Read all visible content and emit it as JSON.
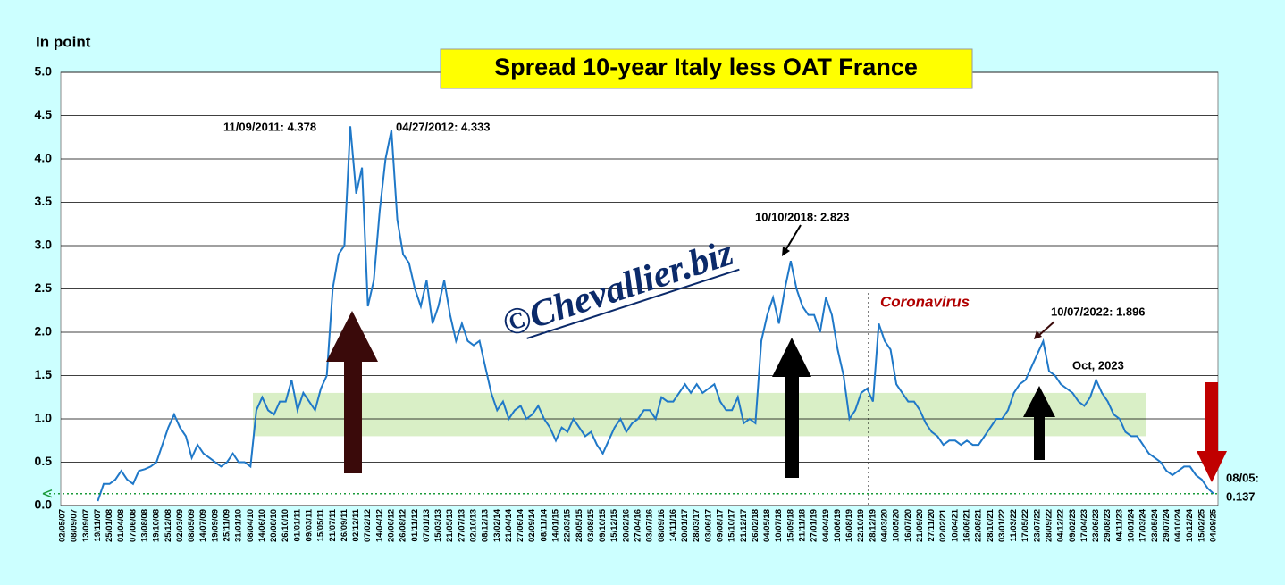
{
  "chart_data": {
    "type": "line",
    "title": "Spread 10-year Italy less OAT France",
    "y_label": "In point",
    "watermark": "©Chevallier.biz",
    "categories": [
      "02/05/07",
      null,
      "08/09/07",
      null,
      "13/09/07",
      null,
      "19/11/07",
      null,
      "25/01/08",
      null,
      "01/04/08",
      null,
      "07/06/08",
      null,
      "13/08/08",
      null,
      "19/10/08",
      null,
      "25/12/08",
      null,
      "02/03/09",
      null,
      "08/05/09",
      null,
      "14/07/09",
      null,
      "19/09/09",
      null,
      "25/11/09",
      null,
      "31/01/10",
      null,
      "08/04/10",
      null,
      "14/06/10",
      null,
      "20/08/10",
      null,
      "26/10/10",
      null,
      "01/01/11",
      null,
      "09/03/11",
      null,
      "15/05/11",
      null,
      "21/07/11",
      null,
      "26/09/11",
      null,
      "02/12/11",
      null,
      "07/02/12",
      null,
      "14/04/12",
      null,
      "20/06/12",
      null,
      "26/08/12",
      null,
      "01/11/12",
      null,
      "07/01/13",
      null,
      "15/03/13",
      null,
      "21/05/13",
      null,
      "27/07/13",
      null,
      "02/10/13",
      null,
      "08/12/13",
      null,
      "13/02/14",
      null,
      "21/04/14",
      null,
      "27/06/14",
      null,
      "02/09/14",
      null,
      "08/11/14",
      null,
      "14/01/15",
      null,
      "22/03/15",
      null,
      "28/05/15",
      null,
      "03/08/15",
      null,
      "09/10/15",
      null,
      "15/12/15",
      null,
      "20/02/16",
      null,
      "27/04/16",
      null,
      "03/07/16",
      null,
      "08/09/16",
      null,
      "14/11/16",
      null,
      "20/01/17",
      null,
      "28/03/17",
      null,
      "03/06/17",
      null,
      "09/08/17",
      null,
      "15/10/17",
      null,
      "21/12/17",
      null,
      "26/02/18",
      null,
      "04/05/18",
      null,
      "10/07/18",
      null,
      "15/09/18",
      null,
      "21/11/18",
      null,
      "27/01/19",
      null,
      "04/04/19",
      null,
      "10/06/19",
      null,
      "16/08/19",
      null,
      "22/10/19",
      null,
      "28/12/19",
      null,
      "04/03/20",
      null,
      "10/05/20",
      null,
      "16/07/20",
      null,
      "21/09/20",
      null,
      "27/11/20",
      null,
      "02/02/21",
      null,
      "10/04/21",
      null,
      "16/06/21",
      null,
      "22/08/21",
      null,
      "28/10/21",
      null,
      "03/01/22",
      null,
      "11/03/22",
      null,
      "17/05/22",
      null,
      "23/07/22",
      null,
      "28/09/22",
      null,
      "04/12/22",
      null,
      "09/02/23",
      null,
      "17/04/23",
      null,
      "23/06/23",
      null,
      "29/08/23",
      null,
      "04/11/23",
      null,
      "10/01/24",
      null,
      "17/03/24",
      null,
      "23/05/24",
      null,
      "29/07/24",
      null,
      "04/10/24",
      null,
      "10/12/24",
      null,
      "15/02/25",
      null,
      "04/09/25"
    ],
    "series": [
      {
        "name": "Spread",
        "color": "#1f78c8",
        "values": [
          null,
          null,
          null,
          null,
          null,
          null,
          0.05,
          0.25,
          0.25,
          0.3,
          0.4,
          0.3,
          0.25,
          0.4,
          0.42,
          0.45,
          0.5,
          0.7,
          0.9,
          1.05,
          0.9,
          0.8,
          0.55,
          0.7,
          0.6,
          0.55,
          0.5,
          0.45,
          0.5,
          0.6,
          0.5,
          0.5,
          0.45,
          1.1,
          1.25,
          1.1,
          1.05,
          1.2,
          1.2,
          1.45,
          1.1,
          1.3,
          1.2,
          1.1,
          1.35,
          1.5,
          2.5,
          2.9,
          3.0,
          4.378,
          3.6,
          3.9,
          2.3,
          2.6,
          3.4,
          4.0,
          4.333,
          3.3,
          2.9,
          2.8,
          2.5,
          2.3,
          2.6,
          2.1,
          2.3,
          2.6,
          2.2,
          1.9,
          2.1,
          1.9,
          1.85,
          1.9,
          1.6,
          1.3,
          1.1,
          1.2,
          1.0,
          1.1,
          1.15,
          1.0,
          1.05,
          1.15,
          1.0,
          0.9,
          0.75,
          0.9,
          0.85,
          1.0,
          0.9,
          0.8,
          0.85,
          0.7,
          0.6,
          0.75,
          0.9,
          1.0,
          0.85,
          0.95,
          1.0,
          1.1,
          1.1,
          1.0,
          1.25,
          1.2,
          1.2,
          1.3,
          1.4,
          1.3,
          1.4,
          1.3,
          1.35,
          1.4,
          1.2,
          1.1,
          1.1,
          1.25,
          0.95,
          1.0,
          0.95,
          1.9,
          2.2,
          2.4,
          2.1,
          2.5,
          2.823,
          2.5,
          2.3,
          2.2,
          2.2,
          2.0,
          2.4,
          2.2,
          1.8,
          1.5,
          1.0,
          1.1,
          1.3,
          1.35,
          1.2,
          2.1,
          1.9,
          1.8,
          1.4,
          1.3,
          1.2,
          1.2,
          1.1,
          0.95,
          0.85,
          0.8,
          0.7,
          0.75,
          0.75,
          0.7,
          0.75,
          0.7,
          0.7,
          0.8,
          0.9,
          1.0,
          1.0,
          1.1,
          1.3,
          1.4,
          1.45,
          1.6,
          1.75,
          1.896,
          1.55,
          1.5,
          1.4,
          1.35,
          1.3,
          1.2,
          1.15,
          1.25,
          1.45,
          1.3,
          1.2,
          1.05,
          1.0,
          0.85,
          0.8,
          0.8,
          0.7,
          0.6,
          0.55,
          0.5,
          0.4,
          0.35,
          0.4,
          0.45,
          0.45,
          0.35,
          0.3,
          0.2,
          0.137
        ]
      }
    ],
    "band": [
      0.8,
      1.3
    ],
    "band_color": "#d9efc6",
    "ylim": [
      0,
      5
    ],
    "yticks": [
      {
        "value": 0,
        "label": "0.0"
      },
      0.5,
      {
        "value": 1,
        "label": "1.0"
      },
      1.5,
      {
        "value": 2,
        "label": "2.0"
      },
      2.5,
      {
        "value": 3,
        "label": "3.0"
      },
      3.5,
      {
        "value": 4,
        "label": "4.0"
      },
      4.5,
      {
        "value": 5,
        "label": "5.0"
      }
    ],
    "grid": true,
    "annotations": [
      "11/09/2011: 4.378",
      "04/27/2012: 4.333",
      "10/10/2018: 2.823",
      "Coronavirus",
      "10/07/2022: 1.896",
      "Oct, 2023",
      "08/05:",
      "0.137"
    ]
  }
}
